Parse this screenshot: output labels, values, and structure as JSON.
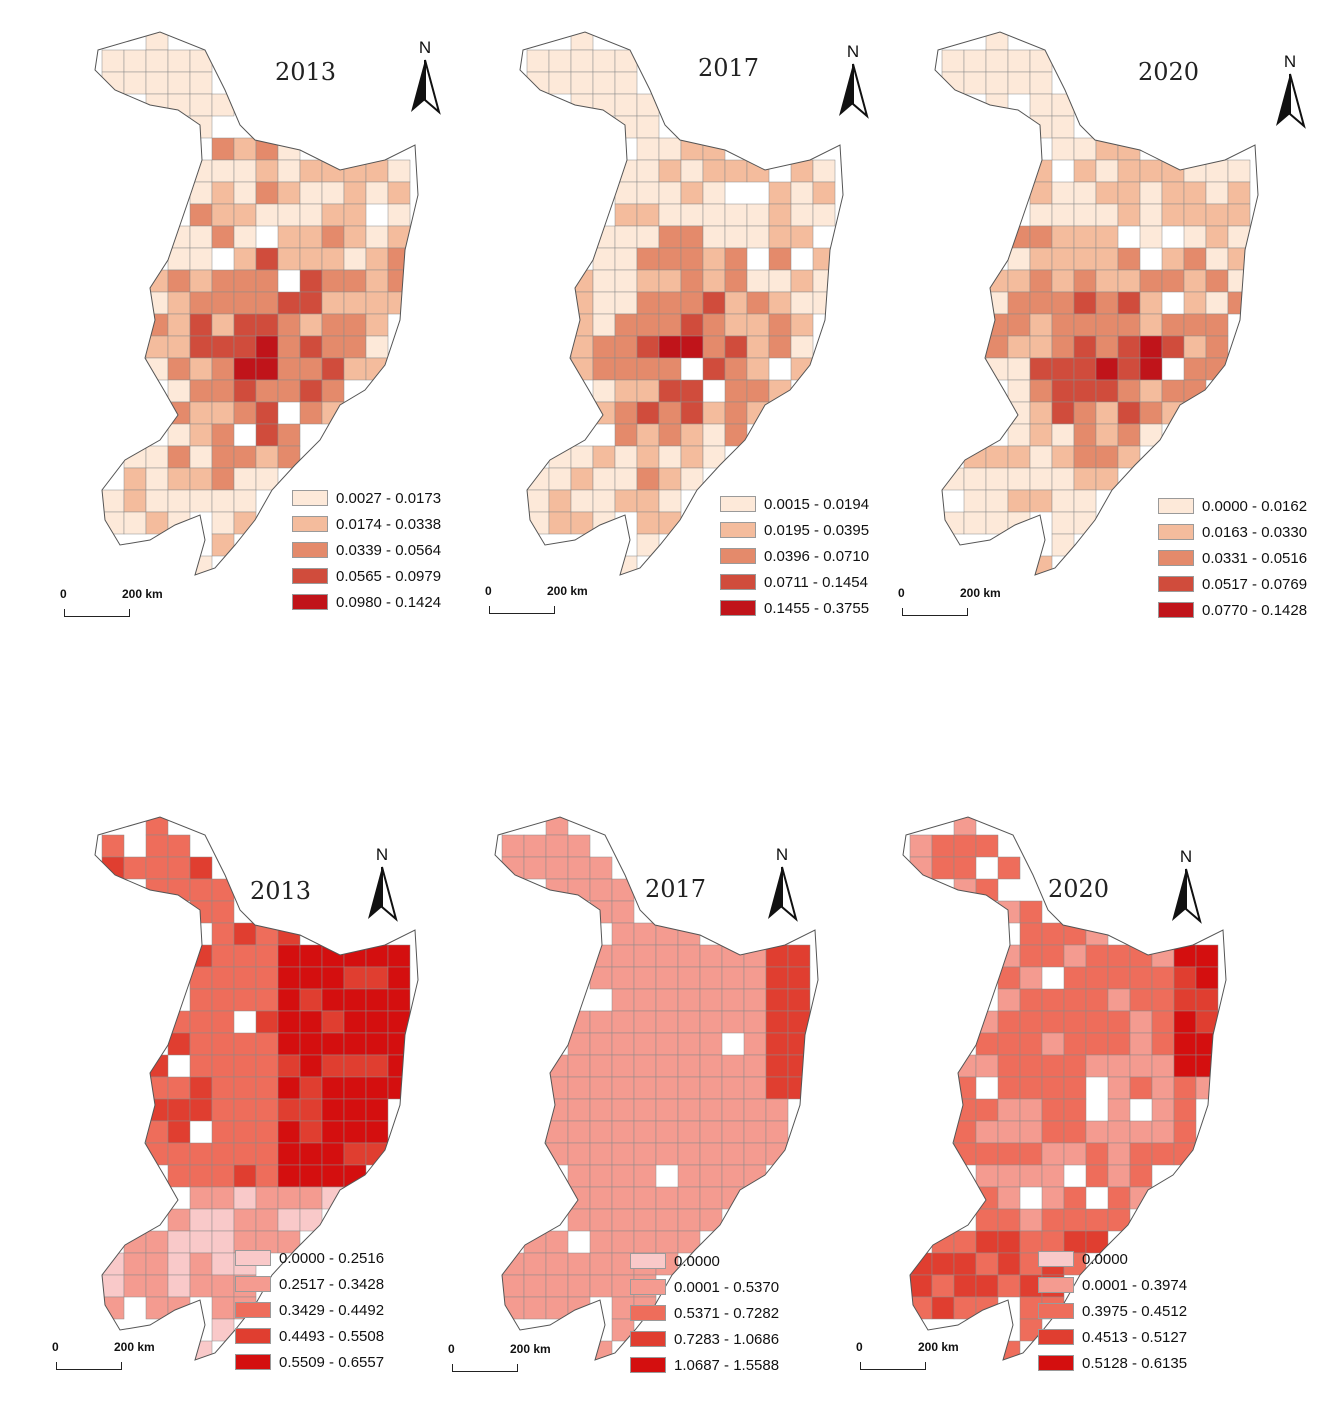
{
  "rows": [
    {
      "palette": [
        "#fde9d9",
        "#f4bc9d",
        "#e48a6b",
        "#d04c3c",
        "#c0141a"
      ],
      "panels": [
        {
          "year": "2013",
          "north": "N",
          "scale": {
            "zero": "0",
            "distance": "200 km"
          },
          "legend": [
            "0.0027 - 0.0173",
            "0.0174 - 0.0338",
            "0.0339 - 0.0564",
            "0.0565 - 0.0979",
            "0.0980 - 0.1424"
          ]
        },
        {
          "year": "2017",
          "north": "N",
          "scale": {
            "zero": "0",
            "distance": "200 km"
          },
          "legend": [
            "0.0015 - 0.0194",
            "0.0195 - 0.0395",
            "0.0396 - 0.0710",
            "0.0711 - 0.1454",
            "0.1455 - 0.3755"
          ]
        },
        {
          "year": "2020",
          "north": "N",
          "scale": {
            "zero": "0",
            "distance": "200 km"
          },
          "legend": [
            "0.0000 - 0.0162",
            "0.0163 - 0.0330",
            "0.0331 - 0.0516",
            "0.0517 - 0.0769",
            "0.0770 - 0.1428"
          ]
        }
      ]
    },
    {
      "palette": [
        "#f9c9c9",
        "#f49b90",
        "#ee6d5b",
        "#e03e30",
        "#d40f0f"
      ],
      "panels": [
        {
          "year": "2013",
          "north": "N",
          "scale": {
            "zero": "0",
            "distance": "200 km"
          },
          "legend": [
            "0.0000 - 0.2516",
            "0.2517 - 0.3428",
            "0.3429 - 0.4492",
            "0.4493 - 0.5508",
            "0.5509 - 0.6557"
          ]
        },
        {
          "year": "2017",
          "north": "N",
          "scale": {
            "zero": "0",
            "distance": "200 km"
          },
          "legend": [
            "0.0000",
            "0.0001 - 0.5370",
            "0.5371 - 0.7282",
            "0.7283 - 1.0686",
            "1.0687 - 1.5588"
          ]
        },
        {
          "year": "2020",
          "north": "N",
          "scale": {
            "zero": "0",
            "distance": "200 km"
          },
          "legend": [
            "0.0000",
            "0.0001 - 0.3974",
            "0.3975 - 0.4512",
            "0.4513 - 0.5127",
            "0.5128 - 0.6135"
          ]
        }
      ]
    }
  ]
}
